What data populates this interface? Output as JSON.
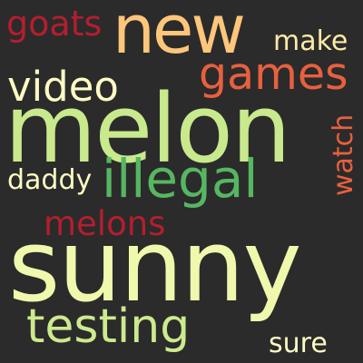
{
  "background_color": "#2b2b2b",
  "words": [
    {
      "key": "new",
      "text": "new",
      "color": "#fec67a"
    },
    {
      "key": "goats",
      "text": "goats",
      "color": "#b41e2e"
    },
    {
      "key": "make",
      "text": "make",
      "color": "#fde9a8"
    },
    {
      "key": "games",
      "text": "games",
      "color": "#e8603f"
    },
    {
      "key": "video",
      "text": "video",
      "color": "#fefbc4"
    },
    {
      "key": "melon",
      "text": "melon",
      "color": "#c9e98d"
    },
    {
      "key": "watch",
      "text": "watch",
      "color": "#e8603f"
    },
    {
      "key": "illegal",
      "text": "illegal",
      "color": "#56b662"
    },
    {
      "key": "daddy",
      "text": "daddy",
      "color": "#fefbc4"
    },
    {
      "key": "melons",
      "text": "melons",
      "color": "#b41e2e"
    },
    {
      "key": "sunny",
      "text": "sunny",
      "color": "#eff8ac"
    },
    {
      "key": "testing",
      "text": "testing",
      "color": "#cdea8e"
    },
    {
      "key": "sure",
      "text": "sure",
      "color": "#fefbc4"
    }
  ]
}
